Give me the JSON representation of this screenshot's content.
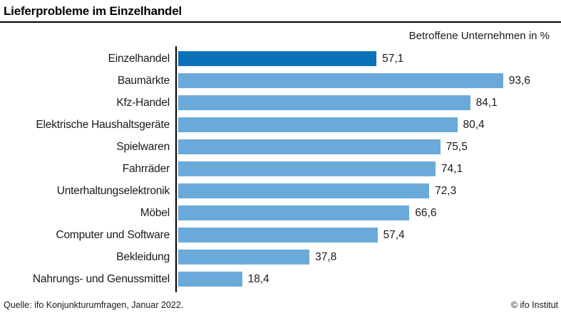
{
  "title": "Lieferprobleme im Einzelhandel",
  "subtitle": "Betroffene Unternehmen in %",
  "footer": {
    "source": "Quelle: ifo Konjunkturumfragen, Januar 2022.",
    "copyright": "© ifo Institut"
  },
  "colors": {
    "highlight_bar": "#0b72b8",
    "bar": "#6aaad8",
    "axis": "#000000",
    "text": "#1a1a1a"
  },
  "chart_data": {
    "type": "bar",
    "orientation": "horizontal",
    "title": "Lieferprobleme im Einzelhandel",
    "xlabel": "Betroffene Unternehmen in %",
    "xlim": [
      0,
      100
    ],
    "grid": false,
    "legend": false,
    "highlight_index": 0,
    "categories": [
      "Einzelhandel",
      "Baumärkte",
      "Kfz-Handel",
      "Elektrische Haushaltsgeräte",
      "Spielwaren",
      "Fahrräder",
      "Unterhaltungselektronik",
      "Möbel",
      "Computer und Software",
      "Bekleidung",
      "Nahrungs- und Genussmittel"
    ],
    "values": [
      57.1,
      93.6,
      84.1,
      80.4,
      75.5,
      74.1,
      72.3,
      66.6,
      57.4,
      37.8,
      18.4
    ],
    "value_labels": [
      "57,1",
      "93,6",
      "84,1",
      "80,4",
      "75,5",
      "74,1",
      "72,3",
      "66,6",
      "57,4",
      "37,8",
      "18,4"
    ]
  }
}
